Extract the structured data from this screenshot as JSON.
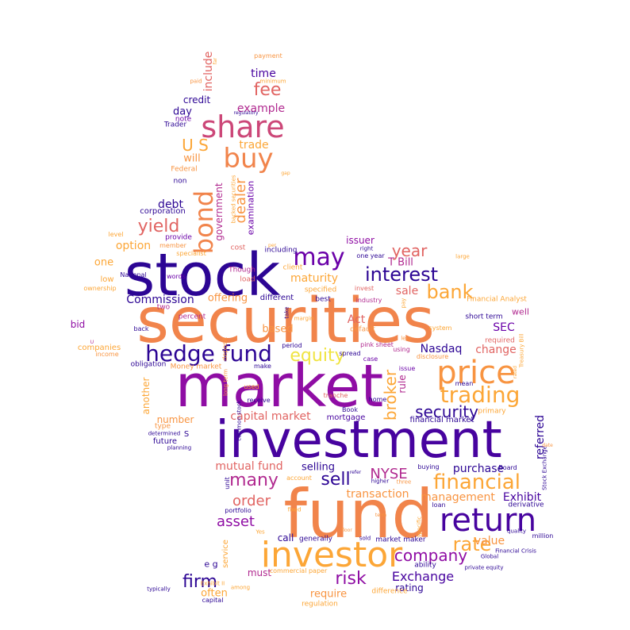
{
  "colors": {
    "navy": "#2c0594",
    "indigo": "#47039f",
    "violet": "#6a00a8",
    "purple": "#8f0da4",
    "magenta": "#b12a90",
    "rose": "#cc4778",
    "coral": "#e16462",
    "orange": "#f1844b",
    "amber": "#f89441",
    "gold": "#fca636",
    "yellow": "#f0e442"
  },
  "words": [
    {
      "text": "securities"
    },
    {
      "text": "market"
    },
    {
      "text": "investment"
    },
    {
      "text": "fund"
    },
    {
      "text": "stock"
    },
    {
      "text": "investor"
    },
    {
      "text": "price"
    },
    {
      "text": "return"
    },
    {
      "text": "share"
    },
    {
      "text": "hedge fund"
    },
    {
      "text": "may"
    },
    {
      "text": "buy"
    },
    {
      "text": "bond"
    },
    {
      "text": "trading"
    },
    {
      "text": "financial"
    },
    {
      "text": "interest"
    },
    {
      "text": "bank"
    },
    {
      "text": "security"
    },
    {
      "text": "equity"
    },
    {
      "text": "company"
    },
    {
      "text": "rate"
    },
    {
      "text": "sell"
    },
    {
      "text": "many"
    },
    {
      "text": "firm"
    },
    {
      "text": "risk"
    },
    {
      "text": "order"
    },
    {
      "text": "asset"
    },
    {
      "text": "year"
    },
    {
      "text": "yield"
    },
    {
      "text": "broker"
    },
    {
      "text": "dealer"
    },
    {
      "text": "fee"
    },
    {
      "text": "NYSE"
    },
    {
      "text": "U S"
    },
    {
      "text": "Nasdaq"
    },
    {
      "text": "capital market"
    },
    {
      "text": "Exchange"
    },
    {
      "text": "mutual fund"
    },
    {
      "text": "transaction"
    },
    {
      "text": "maturity"
    },
    {
      "text": "Commission"
    },
    {
      "text": "option"
    },
    {
      "text": "Act"
    },
    {
      "text": "value"
    },
    {
      "text": "purchase"
    },
    {
      "text": "management"
    },
    {
      "text": "Exhibit"
    },
    {
      "text": "referred"
    },
    {
      "text": "change"
    },
    {
      "text": "SEC"
    },
    {
      "text": "sale"
    },
    {
      "text": "time"
    },
    {
      "text": "example"
    },
    {
      "text": "trade"
    },
    {
      "text": "include"
    },
    {
      "text": "government"
    },
    {
      "text": "debt"
    },
    {
      "text": "credit"
    },
    {
      "text": "will"
    },
    {
      "text": "day"
    },
    {
      "text": "offering"
    },
    {
      "text": "based"
    },
    {
      "text": "issuer"
    },
    {
      "text": "T Bill"
    },
    {
      "text": "selling"
    },
    {
      "text": "require"
    },
    {
      "text": "rating"
    },
    {
      "text": "often"
    },
    {
      "text": "call"
    },
    {
      "text": "must"
    },
    {
      "text": "rule"
    },
    {
      "text": "mortgage"
    },
    {
      "text": "number"
    },
    {
      "text": "another"
    },
    {
      "text": "bid"
    },
    {
      "text": "one"
    },
    {
      "text": "e g"
    },
    {
      "text": "service"
    },
    {
      "text": "examination"
    },
    {
      "text": "corporation"
    },
    {
      "text": "note"
    },
    {
      "text": "Trader"
    },
    {
      "text": "Federal"
    },
    {
      "text": "non"
    },
    {
      "text": "provide"
    },
    {
      "text": "member"
    },
    {
      "text": "level"
    },
    {
      "text": "specialist"
    },
    {
      "text": "cost"
    },
    {
      "text": "including"
    },
    {
      "text": "client"
    },
    {
      "text": "Though"
    },
    {
      "text": "load"
    },
    {
      "text": "one year"
    },
    {
      "text": "different"
    },
    {
      "text": "low"
    },
    {
      "text": "National"
    },
    {
      "text": "words"
    },
    {
      "text": "ownership"
    },
    {
      "text": "two"
    },
    {
      "text": "percent"
    },
    {
      "text": "back"
    },
    {
      "text": "companies"
    },
    {
      "text": "income"
    },
    {
      "text": "obligation"
    },
    {
      "text": "Money market"
    },
    {
      "text": "period"
    },
    {
      "text": "pink sheet"
    },
    {
      "text": "spread"
    },
    {
      "text": "case"
    },
    {
      "text": "issue"
    },
    {
      "text": "using"
    },
    {
      "text": "disclosure"
    },
    {
      "text": "default"
    },
    {
      "text": "system"
    },
    {
      "text": "required"
    },
    {
      "text": "short term"
    },
    {
      "text": "well"
    },
    {
      "text": "Financial Analyst"
    },
    {
      "text": "industry"
    },
    {
      "text": "invest"
    },
    {
      "text": "best"
    },
    {
      "text": "specified"
    },
    {
      "text": "margin"
    },
    {
      "text": "take"
    },
    {
      "text": "less"
    },
    {
      "text": "pay"
    },
    {
      "text": "large"
    },
    {
      "text": "Treasury Bill"
    },
    {
      "text": "primary"
    },
    {
      "text": "mean"
    },
    {
      "text": "financial market"
    },
    {
      "text": "tranche"
    },
    {
      "text": "Book"
    },
    {
      "text": "home"
    },
    {
      "text": "receive"
    },
    {
      "text": "used"
    },
    {
      "text": "make"
    },
    {
      "text": "long term"
    },
    {
      "text": "deposit"
    },
    {
      "text": "future"
    },
    {
      "text": "type"
    },
    {
      "text": "S"
    },
    {
      "text": "determined"
    },
    {
      "text": "planning"
    },
    {
      "text": "common stock"
    },
    {
      "text": "portfolio"
    },
    {
      "text": "unit"
    },
    {
      "text": "account"
    },
    {
      "text": "fixed"
    },
    {
      "text": "higher"
    },
    {
      "text": "three"
    },
    {
      "text": "buying"
    },
    {
      "text": "Board"
    },
    {
      "text": "Stock Exchange"
    },
    {
      "text": "loan"
    },
    {
      "text": "derivative"
    },
    {
      "text": "quality"
    },
    {
      "text": "million"
    },
    {
      "text": "market maker"
    },
    {
      "text": "generally"
    },
    {
      "text": "sold"
    },
    {
      "text": "specific"
    },
    {
      "text": "ability"
    },
    {
      "text": "Global"
    },
    {
      "text": "Financial Crisis"
    },
    {
      "text": "private equity"
    },
    {
      "text": "commercial paper"
    },
    {
      "text": "Exhibit II"
    },
    {
      "text": "among"
    },
    {
      "text": "difference"
    },
    {
      "text": "typically"
    },
    {
      "text": "capital"
    },
    {
      "text": "regulation"
    },
    {
      "text": "Yes"
    },
    {
      "text": "payment"
    },
    {
      "text": "minimum"
    },
    {
      "text": "paid"
    },
    {
      "text": "regulatory"
    },
    {
      "text": "backed securities"
    },
    {
      "text": "right"
    },
    {
      "text": "per"
    },
    {
      "text": "U"
    },
    {
      "text": "rated"
    },
    {
      "text": "date"
    },
    {
      "text": "term"
    },
    {
      "text": "floor"
    },
    {
      "text": "refer"
    },
    {
      "text": "gap"
    },
    {
      "text": "far"
    },
    {
      "text": "less"
    }
  ]
}
